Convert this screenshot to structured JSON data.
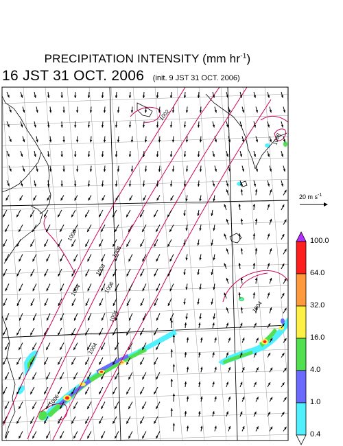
{
  "title": {
    "main": "PRECIPITATION INTENSITY (mm hr",
    "unit_exponent": "-1",
    "unit_close": ")"
  },
  "valid_time": "16 JST 31 OCT. 2006",
  "init_time": "(init. 9 JST 31 OCT. 2006)",
  "wind_scale": {
    "value": "20 m s",
    "exponent": "-1"
  },
  "colorbar": {
    "labels": [
      "100.0",
      "64.0",
      "32.0",
      "16.0",
      "4.0",
      "1.0",
      "0.4"
    ],
    "colors": [
      "#ff1e1e",
      "#ff9a3c",
      "#fff046",
      "#50e050",
      "#6a6aff",
      "#50f0ff"
    ],
    "over_color": "#b430ff",
    "under_color": "#ffffff"
  },
  "isobars": [
    "1004",
    "1006",
    "1004",
    "1006",
    "1006",
    "1004",
    "1008",
    "1006",
    "1008",
    "1004",
    "1002"
  ],
  "colors": {
    "isobar": "#cc0055",
    "coast": "#000000",
    "grid": "#9a9a9a",
    "frame": "#000000",
    "wind": "#000000"
  }
}
